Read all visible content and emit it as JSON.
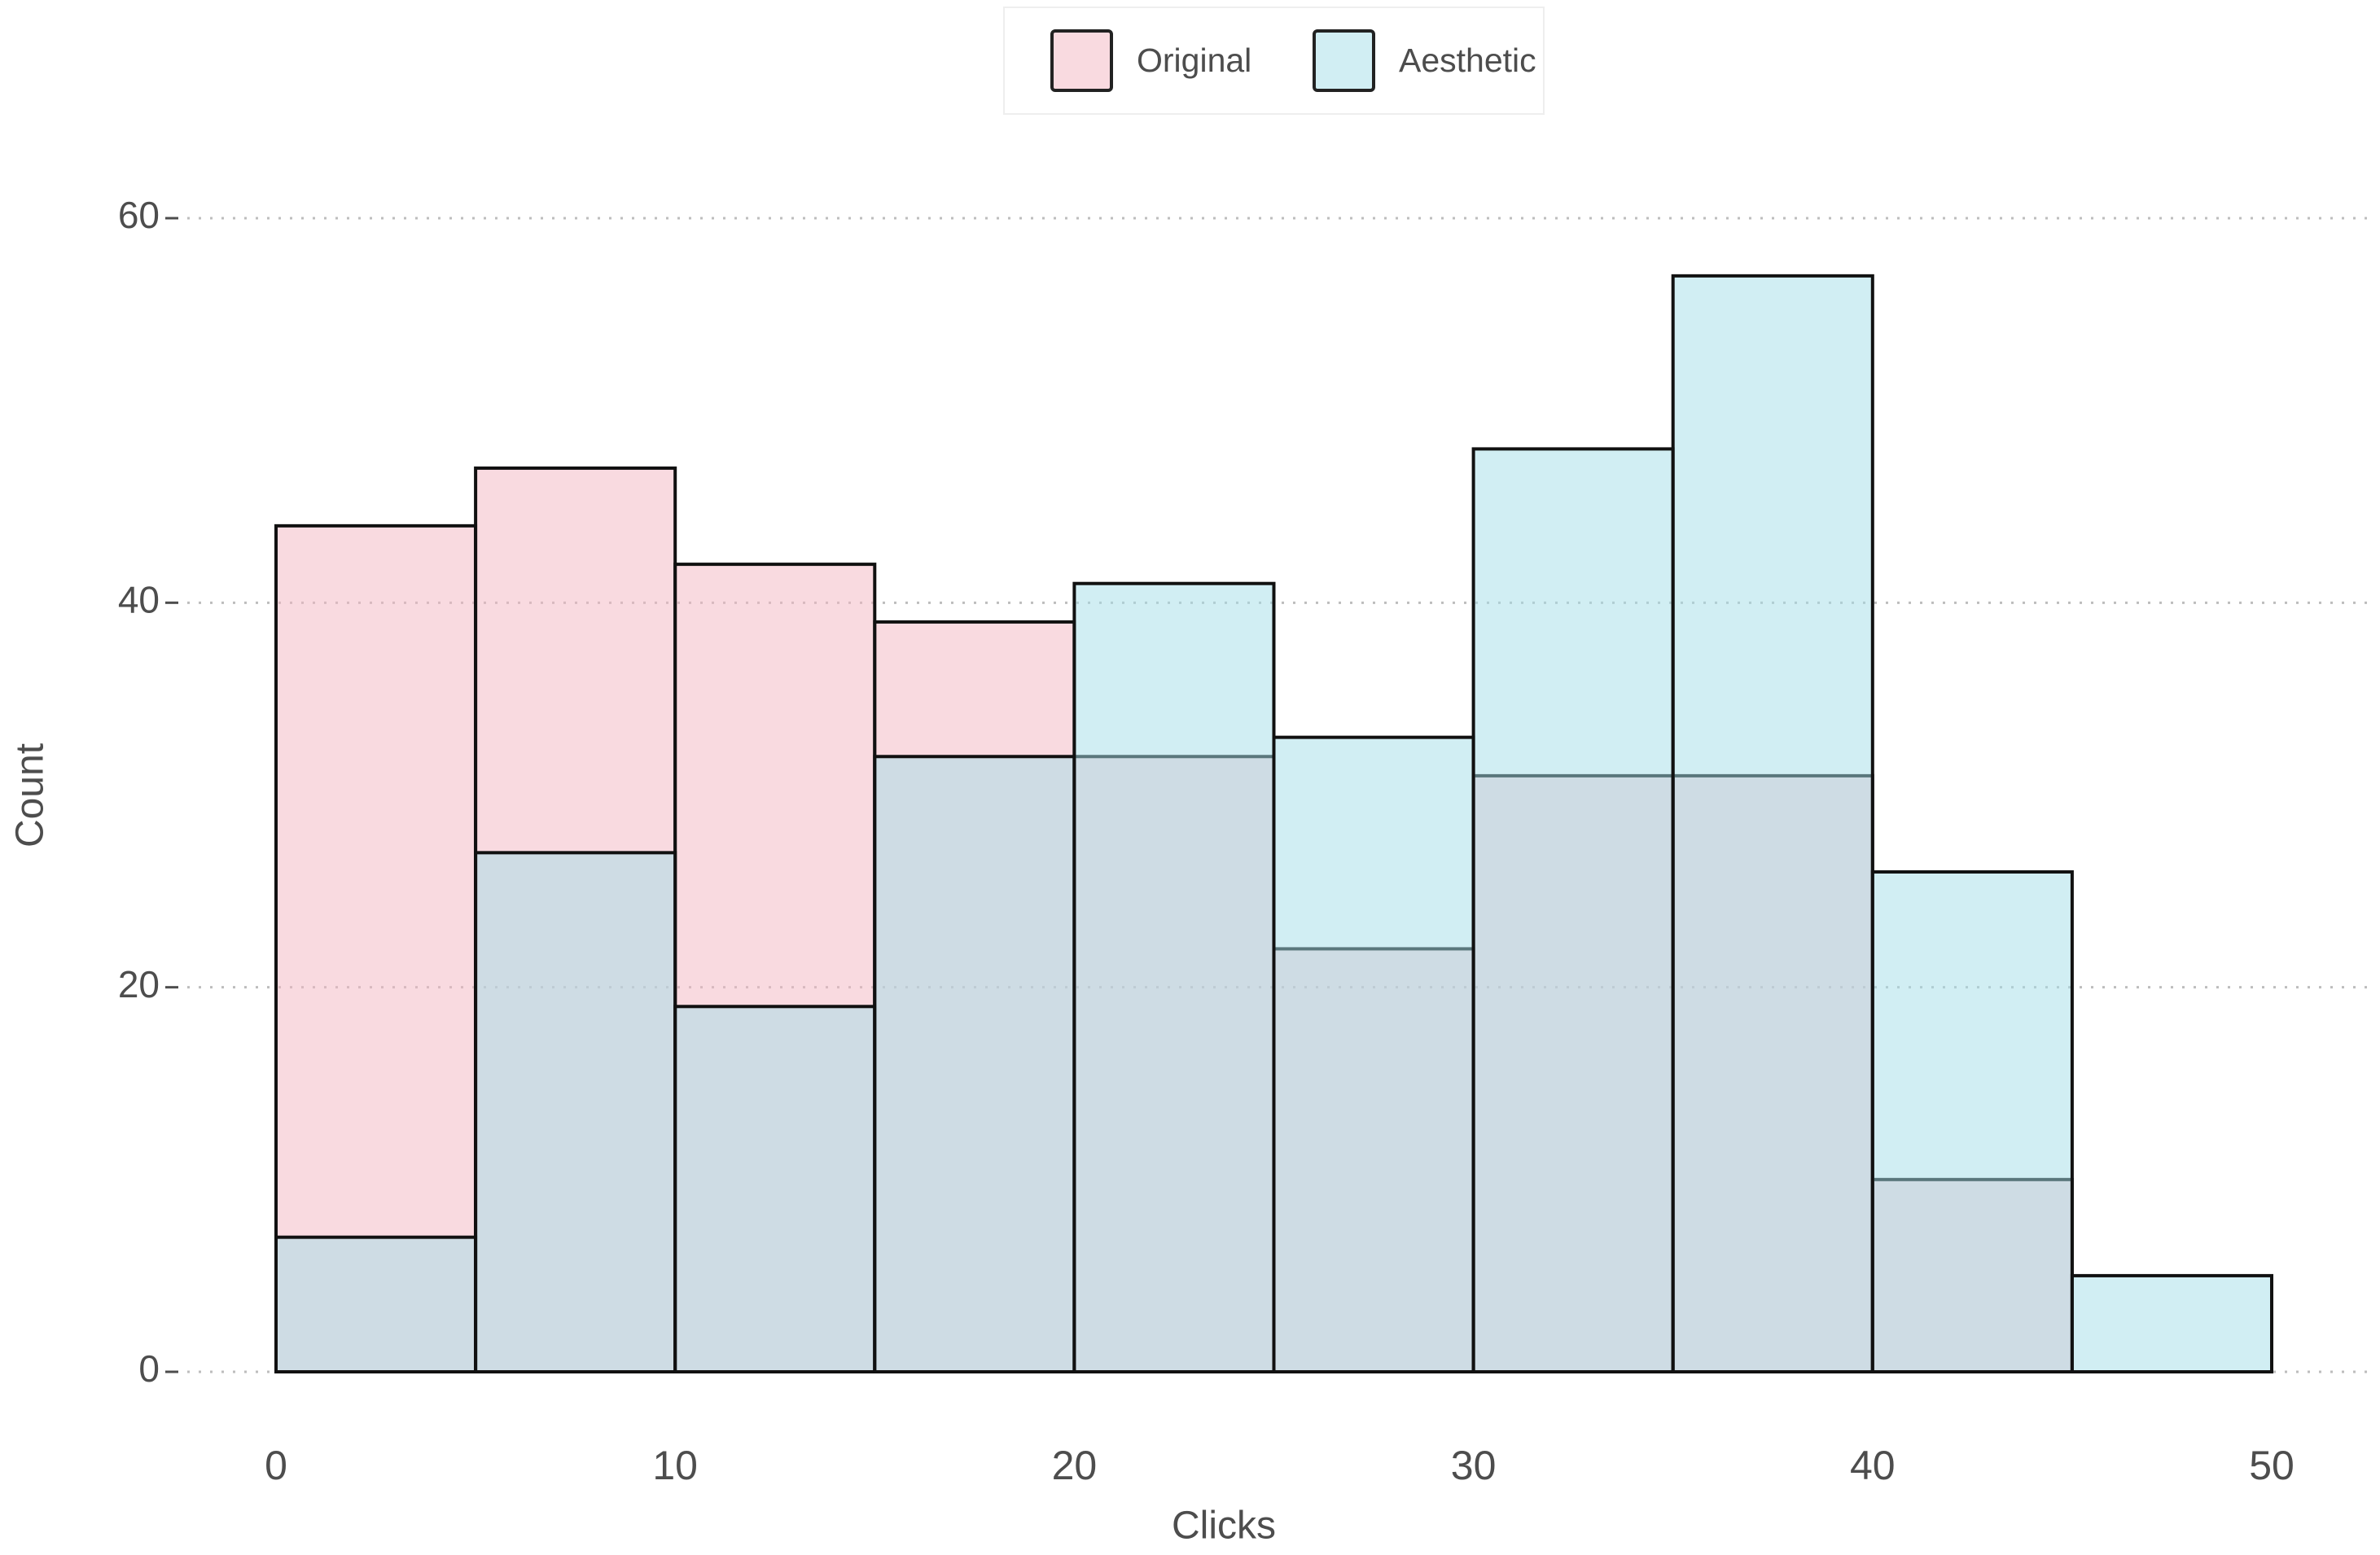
{
  "chart_data": {
    "type": "histogram",
    "x_label": "Clicks",
    "y_label": "Count",
    "bins": [
      0,
      5,
      10,
      15,
      20,
      25,
      30,
      35,
      40,
      45,
      50
    ],
    "series": [
      {
        "name": "Original",
        "color": "#f4b6c2",
        "values": [
          44,
          47,
          42,
          39,
          32,
          22,
          31,
          31,
          10,
          0
        ]
      },
      {
        "name": "Aesthetic",
        "color": "#a4dde8",
        "values": [
          7,
          27,
          19,
          32,
          41,
          33,
          48,
          57,
          26,
          5
        ]
      }
    ],
    "xlim": [
      0,
      50
    ],
    "xticks": [
      0,
      10,
      20,
      30,
      40,
      50
    ],
    "ylim": [
      0,
      60
    ],
    "yticks": [
      0,
      20,
      40,
      60
    ],
    "grid": true,
    "legend_position": "top"
  }
}
